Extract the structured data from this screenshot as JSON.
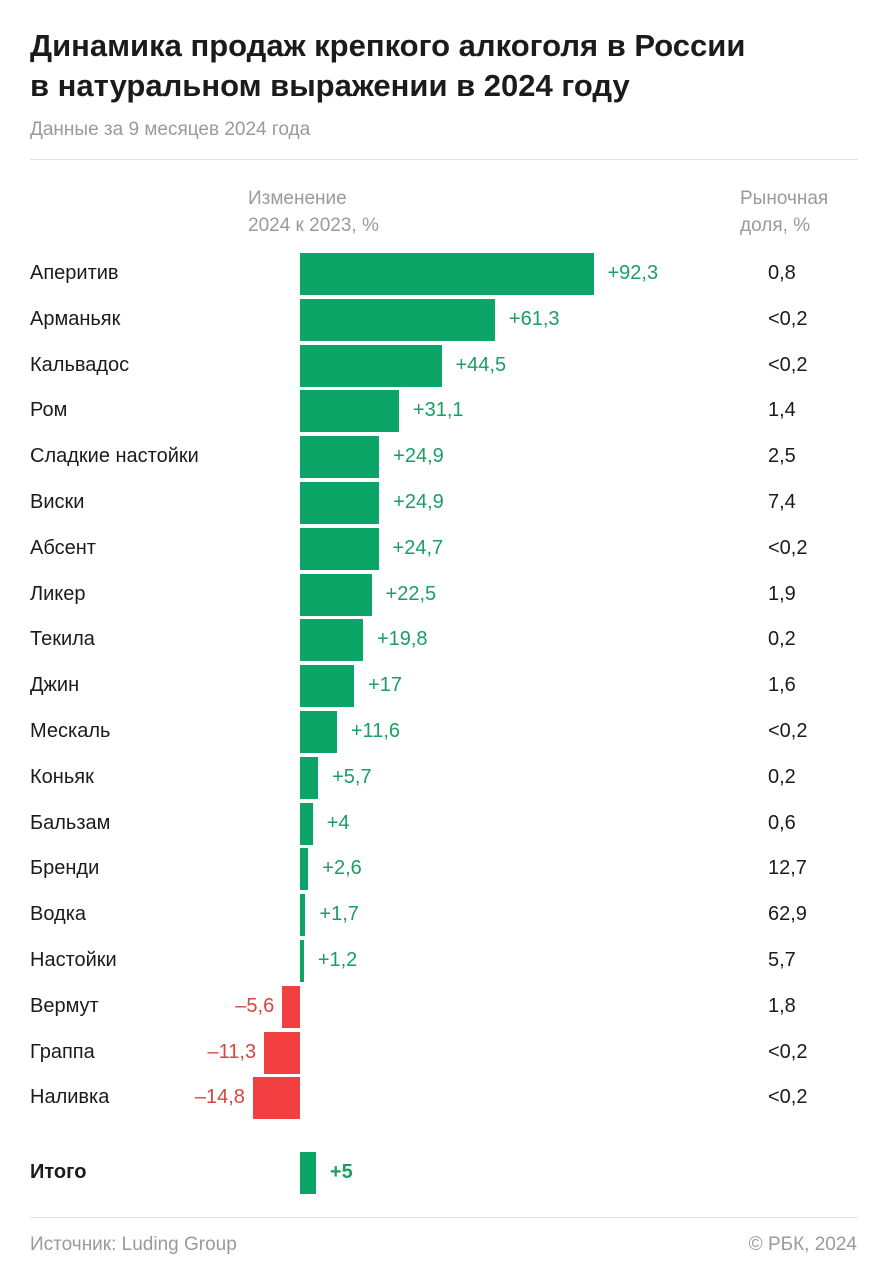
{
  "title_line1": "Динамика продаж крепкого алкоголя в России",
  "title_line2": "в натуральном выражении в 2024 году",
  "subtitle": "Данные за 9 месяцев 2024 года",
  "colors": {
    "positive": "#0aa567",
    "negative": "#f23f42",
    "positive_text": "#1a9e63",
    "negative_text": "#d6453f"
  },
  "chart_data": {
    "type": "bar",
    "orientation": "horizontal",
    "value_header_line1": "Изменение",
    "value_header_line2": "2024 к 2023, %",
    "share_header_line1": "Рыночная",
    "share_header_line2": "доля, %",
    "categories": [
      "Аперитив",
      "Арманьяк",
      "Кальвадос",
      "Ром",
      "Сладкие настойки",
      "Виски",
      "Абсент",
      "Ликер",
      "Текила",
      "Джин",
      "Мескаль",
      "Коньяк",
      "Бальзам",
      "Бренди",
      "Водка",
      "Настойки",
      "Вермут",
      "Граппа",
      "Наливка"
    ],
    "values": [
      92.3,
      61.3,
      44.5,
      31.1,
      24.9,
      24.9,
      24.7,
      22.5,
      19.8,
      17,
      11.6,
      5.7,
      4,
      2.6,
      1.7,
      1.2,
      -5.6,
      -11.3,
      -14.8
    ],
    "value_labels": [
      "+92,3",
      "+61,3",
      "+44,5",
      "+31,1",
      "+24,9",
      "+24,9",
      "+24,7",
      "+22,5",
      "+19,8",
      "+17",
      "+11,6",
      "+5,7",
      "+4",
      "+2,6",
      "+1,7",
      "+1,2",
      "–5,6",
      "–11,3",
      "–14,8"
    ],
    "market_share": [
      "0,8",
      "<0,2",
      "<0,2",
      "1,4",
      "2,5",
      "7,4",
      "<0,2",
      "1,9",
      "0,2",
      "1,6",
      "<0,2",
      "0,2",
      "0,6",
      "12,7",
      "62,9",
      "5,7",
      "1,8",
      "<0,2",
      "<0,2"
    ],
    "total": {
      "label": "Итого",
      "value": 5,
      "value_label": "+5"
    }
  },
  "footer": {
    "source": "Источник: Luding Group",
    "copyright": "© РБК, 2024"
  }
}
